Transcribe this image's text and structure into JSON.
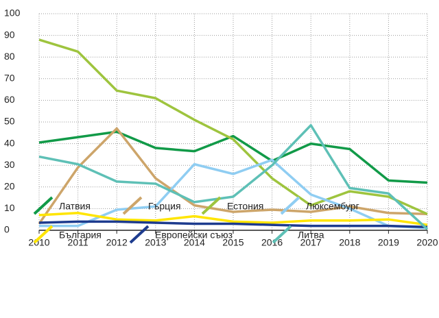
{
  "chart_data": {
    "type": "line",
    "x": [
      2010,
      2011,
      2012,
      2013,
      2014,
      2015,
      2016,
      2017,
      2018,
      2019,
      2020
    ],
    "xlim": [
      2010,
      2020
    ],
    "xticks": [
      2010,
      2011,
      2012,
      2013,
      2014,
      2015,
      2016,
      2017,
      2018,
      2019,
      2020
    ],
    "ylim": [
      0,
      100
    ],
    "yticks": [
      0,
      10,
      20,
      30,
      40,
      50,
      60,
      70,
      80,
      90,
      100
    ],
    "grid": true,
    "legend": "bottom",
    "series": [
      {
        "name": "Латвия",
        "color": "#119a48",
        "values": [
          40.5,
          43,
          45.5,
          38,
          36.5,
          43.5,
          32,
          40,
          37.5,
          23,
          22
        ]
      },
      {
        "name": "Гърция",
        "color": "#cda56a",
        "values": [
          3,
          29,
          47,
          24,
          11.5,
          8.5,
          9.5,
          8.5,
          11,
          8,
          7.5
        ]
      },
      {
        "name": "Естония",
        "color": "#9ec43e",
        "values": [
          88,
          82.5,
          64.5,
          61,
          51,
          42,
          24,
          11.5,
          18,
          15.5,
          7.5
        ]
      },
      {
        "name": "Люксембург",
        "color": "#8fcdf2",
        "values": [
          2,
          2,
          9.5,
          11,
          30.5,
          26,
          32.5,
          16.5,
          10,
          2,
          1
        ]
      },
      {
        "name": "България",
        "color": "#ffe500",
        "values": [
          7,
          8,
          5,
          4.5,
          6.5,
          4,
          3.5,
          4.5,
          4.5,
          5,
          2.5
        ]
      },
      {
        "name": "Европейски съюз",
        "color": "#1d3b8e",
        "values": [
          3.5,
          4,
          4,
          3.5,
          3,
          3,
          2.5,
          2,
          2,
          2,
          1.5
        ]
      },
      {
        "name": "Литва",
        "color": "#5ec0b6",
        "values": [
          34,
          30.5,
          22.5,
          21.5,
          13,
          15.5,
          30,
          48.5,
          19.5,
          17,
          0.5
        ]
      }
    ]
  }
}
